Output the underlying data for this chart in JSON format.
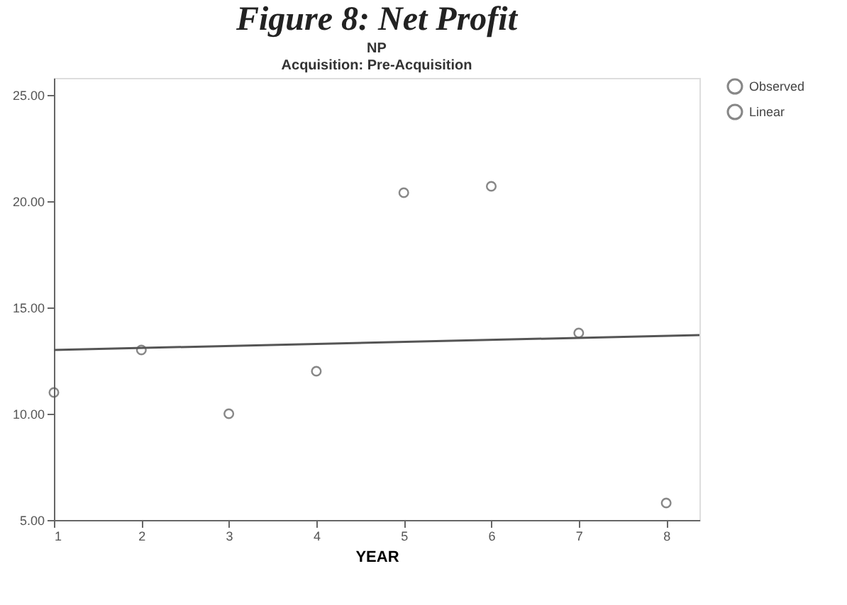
{
  "chart_data": {
    "type": "scatter",
    "title": "Figure 8: Net Profit",
    "subtitle": "NP",
    "annotations": [
      "Acquisition: Pre-Acquisition"
    ],
    "xlabel": "YEAR",
    "x": [
      1,
      2,
      3,
      4,
      5,
      6,
      7,
      8
    ],
    "series": [
      {
        "name": "Observed",
        "color": "#555555",
        "marker": "circle",
        "values": [
          11.0,
          13.0,
          10.0,
          12.0,
          20.4,
          20.7,
          13.8,
          5.8
        ]
      },
      {
        "name": "Linear",
        "color": "#555555",
        "type": "line",
        "marker": "none",
        "x": [
          1,
          8.38
        ],
        "values": [
          13.0,
          13.7
        ]
      }
    ],
    "xlim": [
      1,
      8.38
    ],
    "ylim": [
      5,
      25.8
    ],
    "xticks": [
      1,
      2,
      3,
      4,
      5,
      6,
      7,
      8
    ],
    "yticks": [
      {
        "value": 5,
        "label": "5.00"
      },
      {
        "value": 10,
        "label": "10.00"
      },
      {
        "value": 15,
        "label": "15.00"
      },
      {
        "value": 20,
        "label": "20.00"
      },
      {
        "value": 25,
        "label": "25.00"
      }
    ],
    "grid": false,
    "legend": "top right"
  }
}
